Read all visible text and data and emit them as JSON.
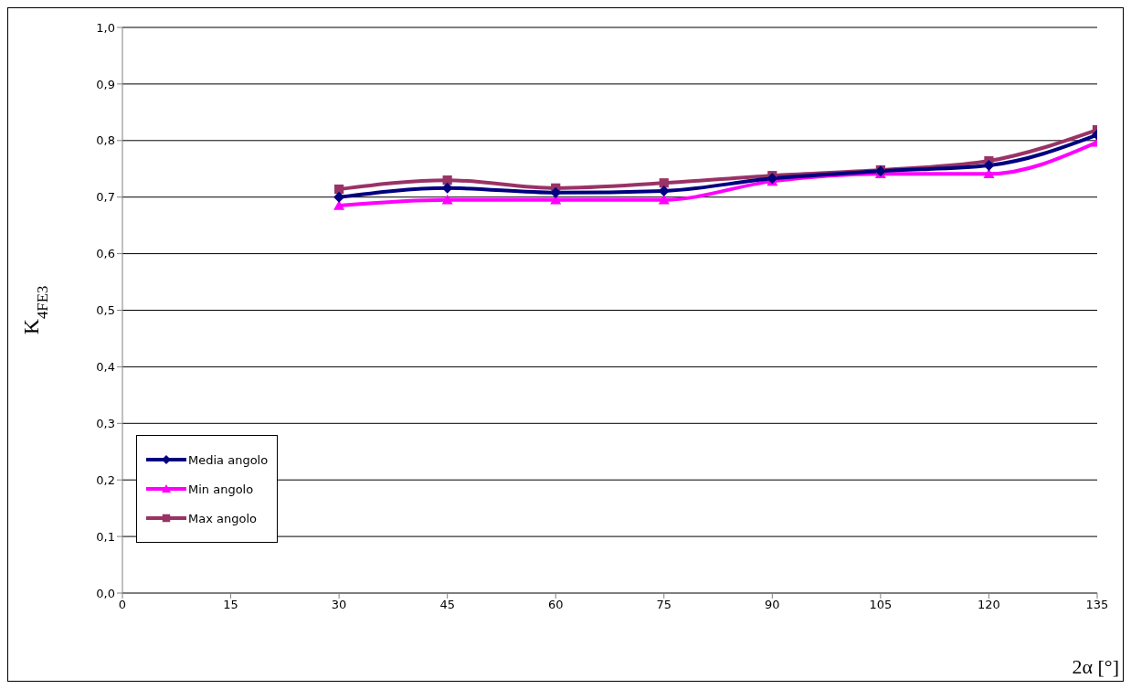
{
  "chart_data": {
    "type": "line",
    "xlabel": "2α [°]",
    "ylabel": "K$_{4FE3}$",
    "x": [
      30,
      45,
      60,
      75,
      90,
      105,
      120,
      135
    ],
    "series": [
      {
        "name": "Media angolo",
        "color": "#000080",
        "marker": "diamond",
        "values": [
          0.7,
          0.716,
          0.708,
          0.711,
          0.733,
          0.746,
          0.756,
          0.81
        ]
      },
      {
        "name": "Min angolo",
        "color": "#ff00ff",
        "marker": "triangle",
        "values": [
          0.685,
          0.695,
          0.695,
          0.695,
          0.728,
          0.741,
          0.741,
          0.797
        ]
      },
      {
        "name": "Max angolo",
        "color": "#993366",
        "marker": "square",
        "values": [
          0.714,
          0.73,
          0.716,
          0.725,
          0.738,
          0.748,
          0.764,
          0.819
        ]
      }
    ],
    "xlim": [
      0,
      135
    ],
    "xticks": [
      0,
      15,
      30,
      45,
      60,
      75,
      90,
      105,
      120,
      135
    ],
    "ylim": [
      0,
      1
    ],
    "yticks": [
      {
        "value": 0,
        "label": "0,0"
      },
      {
        "value": 0.1,
        "label": "0,1"
      },
      {
        "value": 0.2,
        "label": "0,2"
      },
      {
        "value": 0.3,
        "label": "0,3"
      },
      {
        "value": 0.4,
        "label": "0,4"
      },
      {
        "value": 0.5,
        "label": "0,5"
      },
      {
        "value": 0.6,
        "label": "0,6"
      },
      {
        "value": 0.7,
        "label": "0,7"
      },
      {
        "value": 0.8,
        "label": "0,8"
      },
      {
        "value": 0.9,
        "label": "0,9"
      },
      {
        "value": 1,
        "label": "1,0"
      }
    ],
    "grid": "y",
    "legend": "bottom left"
  }
}
